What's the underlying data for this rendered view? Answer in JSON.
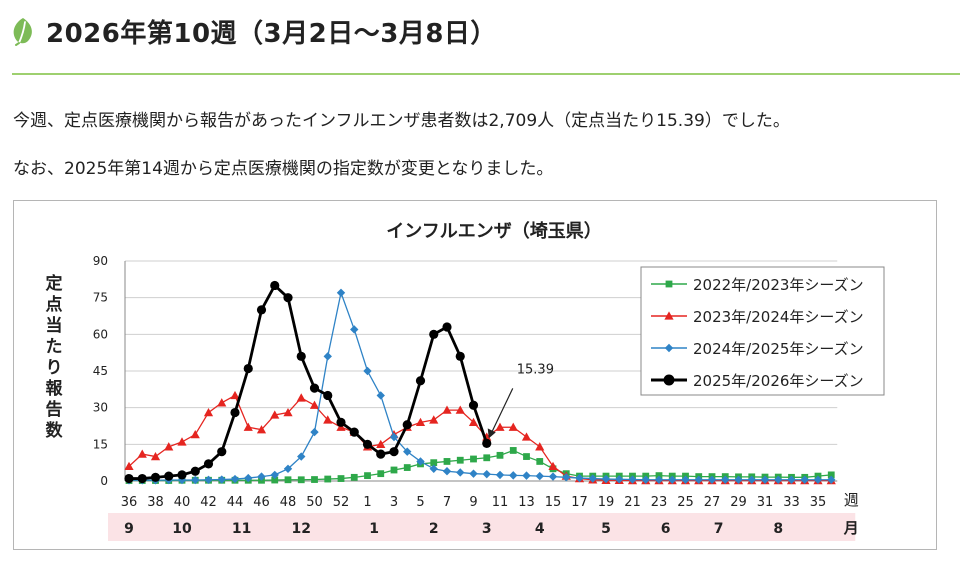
{
  "page": {
    "title": "2026年第10週（3月2日～3月8日）",
    "leaf_icon": "leaf-icon",
    "para1": "今週、定点医療機関から報告があったインフルエンザ患者数は2,709人（定点当たり15.39）でした。",
    "para2": "なお、2025年第14週から定点医療機関の指定数が変更となりました。",
    "colors": {
      "accent": "#9ed06f",
      "leaf": "#7dbb57"
    }
  },
  "chart_data": {
    "type": "line",
    "title": "インフルエンザ（埼玉県）",
    "ylabel": "定点当たり報告数",
    "xlabel": "週",
    "month_label": "月",
    "ylim": [
      0,
      90
    ],
    "yticks": [
      "0",
      "15",
      "30",
      "45",
      "60",
      "75",
      "90"
    ],
    "yvalues": [
      0,
      15,
      30,
      45,
      60,
      75,
      90
    ],
    "x_week_labels": [
      "36",
      "38",
      "40",
      "42",
      "44",
      "46",
      "48",
      "50",
      "52",
      "1",
      "3",
      "5",
      "7",
      "9",
      "11",
      "13",
      "15",
      "17",
      "19",
      "21",
      "23",
      "25",
      "27",
      "29",
      "31",
      "33",
      "35"
    ],
    "month_labels": [
      {
        "label": "9",
        "index": 0
      },
      {
        "label": "10",
        "index": 4
      },
      {
        "label": "11",
        "index": 8.5
      },
      {
        "label": "12",
        "index": 13
      },
      {
        "label": "1",
        "index": 18.5
      },
      {
        "label": "2",
        "index": 23
      },
      {
        "label": "3",
        "index": 27
      },
      {
        "label": "4",
        "index": 31
      },
      {
        "label": "5",
        "index": 36
      },
      {
        "label": "6",
        "index": 40.5
      },
      {
        "label": "7",
        "index": 44.5
      },
      {
        "label": "8",
        "index": 49
      }
    ],
    "annotation": {
      "text": "15.39",
      "series": 3,
      "index": 27
    },
    "series": [
      {
        "name": "2022年/2023年シーズン",
        "color": "#2ea84a",
        "marker": "square",
        "values": [
          0.2,
          0.2,
          0.2,
          0.2,
          0.3,
          0.3,
          0.3,
          0.3,
          0.3,
          0.3,
          0.3,
          0.4,
          0.5,
          0.5,
          0.6,
          0.8,
          1.0,
          1.5,
          2.2,
          3.0,
          4.5,
          5.5,
          7.0,
          7.5,
          8.0,
          8.5,
          9.0,
          9.5,
          10.5,
          12.5,
          10.0,
          8.0,
          5.0,
          3.0,
          2.0,
          2.0,
          2.0,
          2.0,
          2.0,
          2.0,
          2.2,
          2.0,
          2.0,
          1.8,
          1.8,
          1.8,
          1.7,
          1.7,
          1.6,
          1.6,
          1.5,
          1.5,
          2.0,
          2.5
        ]
      },
      {
        "name": "2023年/2024年シーズン",
        "color": "#e52520",
        "marker": "triangle",
        "values": [
          6,
          11,
          10,
          14,
          16,
          19,
          28,
          32,
          35,
          22,
          21,
          27,
          28,
          34,
          31,
          25,
          22,
          20,
          14,
          15,
          19,
          22,
          24,
          25,
          29,
          29,
          24,
          18,
          22,
          22,
          18,
          14,
          6,
          2,
          1,
          0.5,
          0.3,
          0.3,
          0.2,
          0.2,
          0.2,
          0.2,
          0.2,
          0.2,
          0.2,
          0.2,
          0.2,
          0.2,
          0.2,
          0.2,
          0.2,
          0.2,
          0.2,
          0.2
        ]
      },
      {
        "name": "2024年/2025年シーズン",
        "color": "#2f83c6",
        "marker": "diamond",
        "values": [
          0.3,
          0.3,
          0.3,
          0.4,
          0.4,
          0.4,
          0.5,
          0.6,
          0.8,
          1.2,
          1.8,
          2.5,
          5,
          10,
          20,
          51,
          77,
          62,
          45,
          35,
          18,
          12,
          8,
          5,
          4,
          3.5,
          3,
          2.8,
          2.5,
          2.3,
          2.2,
          2,
          1.8,
          1.5,
          1.2,
          1,
          0.8,
          0.7,
          0.6,
          0.5,
          0.5,
          0.5,
          0.5,
          0.5,
          0.5,
          0.5,
          0.5,
          0.5,
          0.5,
          0.5,
          0.5,
          0.5,
          0.5,
          0.5
        ]
      },
      {
        "name": "2025年/2026年シーズン",
        "color": "#000000",
        "marker": "circle",
        "values": [
          1,
          1,
          1.5,
          2,
          2.5,
          4,
          7,
          12,
          28,
          46,
          70,
          80,
          75,
          51,
          38,
          35,
          24,
          20,
          15,
          11,
          12,
          23,
          41,
          60,
          63,
          51,
          31,
          15.39
        ]
      }
    ]
  }
}
